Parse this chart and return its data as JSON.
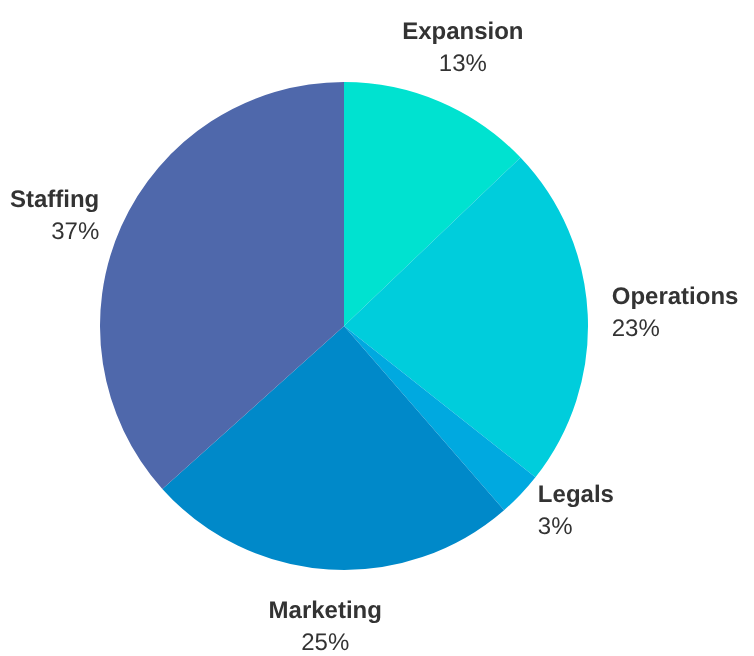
{
  "chart_data": {
    "type": "pie",
    "categories": [
      "Expansion",
      "Operations",
      "Legals",
      "Marketing",
      "Staffing"
    ],
    "values": [
      13,
      23,
      3,
      25,
      37
    ],
    "value_labels": [
      "13%",
      "23%",
      "3%",
      "25%",
      "37%"
    ],
    "colors": [
      "#00e2d0",
      "#00cddc",
      "#00a9e0",
      "#0089c9",
      "#4f68ab"
    ],
    "legend": false
  }
}
